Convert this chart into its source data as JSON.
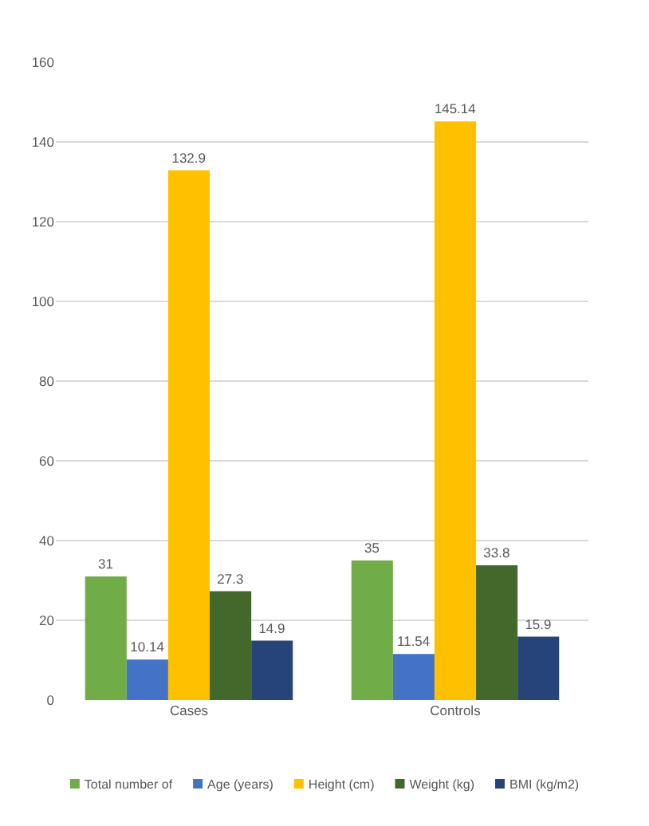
{
  "chart_data": {
    "type": "bar",
    "categories": [
      "Cases",
      "Controls"
    ],
    "series": [
      {
        "name": "Total number of",
        "color": "#70ad47",
        "values": [
          31,
          35
        ]
      },
      {
        "name": "Age (years)",
        "color": "#4472c4",
        "values": [
          10.14,
          11.54
        ]
      },
      {
        "name": "Height (cm)",
        "color": "#ffc000",
        "values": [
          132.9,
          145.14
        ]
      },
      {
        "name": "Weight (kg)",
        "color": "#43682b",
        "values": [
          27.3,
          33.8
        ]
      },
      {
        "name": "BMI (kg/m2)",
        "color": "#264478",
        "values": [
          14.9,
          15.9
        ]
      }
    ],
    "ylim": [
      0,
      160
    ],
    "yticks": [
      0,
      20,
      40,
      60,
      80,
      100,
      120,
      140,
      160
    ],
    "grid": "y",
    "legend": "bottom",
    "data_labels": true
  }
}
